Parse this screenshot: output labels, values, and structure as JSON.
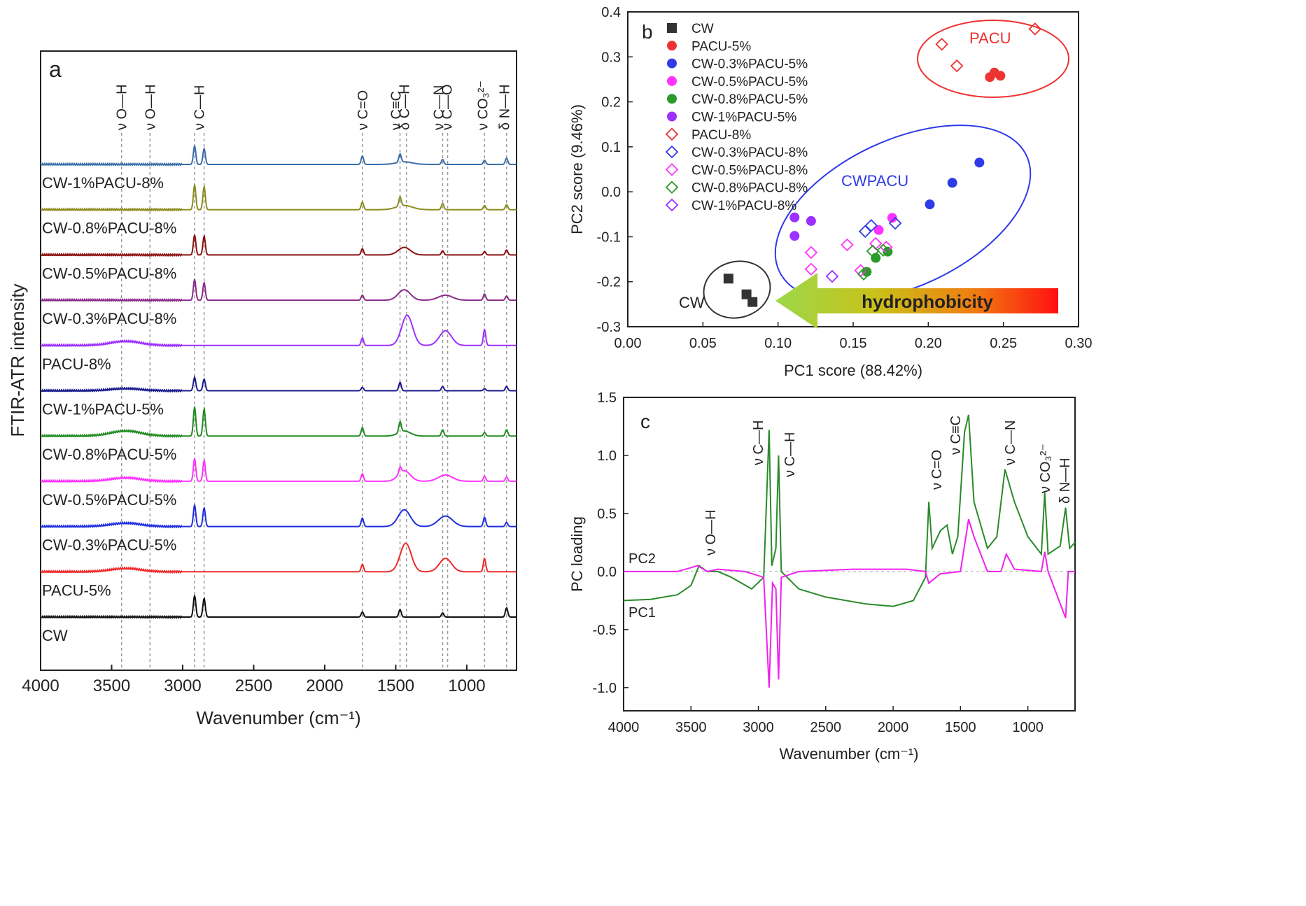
{
  "chart_data": [
    {
      "panel": "a",
      "type": "line",
      "xlabel": "Wavenumber (cm⁻¹)",
      "ylabel": "FTIR-ATR intensity",
      "xlim": [
        4000,
        650
      ],
      "xticks": [
        4000,
        3500,
        3000,
        2500,
        2000,
        1500,
        1000
      ],
      "band_positions": [
        3430,
        3230,
        2916,
        2849,
        1735,
        1470,
        1425,
        1170,
        1135,
        875,
        720
      ],
      "band_labels": [
        {
          "text": "ν O—H",
          "x": 3430
        },
        {
          "text": "ν O—H",
          "x": 3230
        },
        {
          "text": "ν C—H",
          "x": 2885
        },
        {
          "text": "ν C=O",
          "x": 1735
        },
        {
          "text": "ν C≡C",
          "x": 1500
        },
        {
          "text": "δ C—H",
          "x": 1440
        },
        {
          "text": "ν C—N",
          "x": 1200
        },
        {
          "text": "ν C—O",
          "x": 1140
        },
        {
          "text": "ν CO₃²⁻",
          "x": 890
        },
        {
          "text": "δ N—H",
          "x": 735
        }
      ],
      "series": [
        {
          "name": "CW-1%PACU-8%",
          "color": "#3b6fa8",
          "peaks": [
            [
              2916,
              0.45
            ],
            [
              2849,
              0.38
            ],
            [
              1735,
              0.2
            ],
            [
              1470,
              0.2
            ],
            [
              1170,
              0.12
            ],
            [
              875,
              0.1
            ],
            [
              720,
              0.15
            ]
          ],
          "broad": [
            [
              1440,
              0.06,
              80
            ]
          ]
        },
        {
          "name": "CW-0.8%PACU-8%",
          "color": "#8c8c1e",
          "peaks": [
            [
              2916,
              0.6
            ],
            [
              2849,
              0.55
            ],
            [
              1735,
              0.18
            ],
            [
              1470,
              0.22
            ],
            [
              1170,
              0.15
            ],
            [
              875,
              0.1
            ],
            [
              720,
              0.12
            ]
          ],
          "broad": [
            [
              1440,
              0.1,
              80
            ]
          ]
        },
        {
          "name": "CW-0.5%PACU-8%",
          "color": "#8b1010",
          "peaks": [
            [
              2916,
              0.48
            ],
            [
              2849,
              0.45
            ],
            [
              1735,
              0.15
            ],
            [
              1170,
              0.1
            ],
            [
              875,
              0.08
            ],
            [
              720,
              0.12
            ]
          ],
          "broad": [
            [
              1440,
              0.18,
              60
            ]
          ]
        },
        {
          "name": "CW-0.3%PACU-8%",
          "color": "#8a2a8a",
          "peaks": [
            [
              2916,
              0.5
            ],
            [
              2849,
              0.42
            ],
            [
              1735,
              0.12
            ],
            [
              875,
              0.15
            ],
            [
              720,
              0.1
            ]
          ],
          "broad": [
            [
              1440,
              0.25,
              60
            ],
            [
              1150,
              0.12,
              70
            ]
          ]
        },
        {
          "name": "PACU-8%",
          "color": "#9b30ff",
          "peaks": [
            [
              1735,
              0.18
            ],
            [
              875,
              0.38
            ]
          ],
          "broad": [
            [
              3400,
              0.1,
              150
            ],
            [
              1420,
              0.72,
              55
            ],
            [
              1150,
              0.35,
              60
            ]
          ]
        },
        {
          "name": "CW-1%PACU-5%",
          "color": "#1a1a8c",
          "peaks": [
            [
              2916,
              0.32
            ],
            [
              2849,
              0.28
            ],
            [
              1735,
              0.08
            ],
            [
              1470,
              0.2
            ],
            [
              1170,
              0.1
            ],
            [
              875,
              0.05
            ],
            [
              720,
              0.1
            ]
          ],
          "broad": [
            [
              3400,
              0.05,
              150
            ]
          ]
        },
        {
          "name": "CW-0.8%PACU-5%",
          "color": "#228b22",
          "peaks": [
            [
              2916,
              0.7
            ],
            [
              2849,
              0.65
            ],
            [
              1735,
              0.2
            ],
            [
              1470,
              0.25
            ],
            [
              1170,
              0.15
            ],
            [
              875,
              0.08
            ],
            [
              720,
              0.15
            ]
          ],
          "broad": [
            [
              3400,
              0.12,
              150
            ],
            [
              1440,
              0.12,
              60
            ]
          ]
        },
        {
          "name": "CW-0.5%PACU-5%",
          "color": "#ff33ff",
          "peaks": [
            [
              2916,
              0.55
            ],
            [
              2849,
              0.5
            ],
            [
              1735,
              0.18
            ],
            [
              1470,
              0.15
            ],
            [
              875,
              0.12
            ],
            [
              720,
              0.1
            ]
          ],
          "broad": [
            [
              3400,
              0.08,
              150
            ],
            [
              1440,
              0.25,
              60
            ],
            [
              1150,
              0.15,
              70
            ]
          ]
        },
        {
          "name": "CW-0.3%PACU-5%",
          "color": "#1f2fe0",
          "peaks": [
            [
              2916,
              0.52
            ],
            [
              2849,
              0.45
            ],
            [
              1735,
              0.2
            ],
            [
              875,
              0.22
            ],
            [
              720,
              0.1
            ]
          ],
          "broad": [
            [
              3400,
              0.08,
              150
            ],
            [
              1440,
              0.4,
              60
            ],
            [
              1150,
              0.25,
              70
            ]
          ]
        },
        {
          "name": "PACU-5%",
          "color": "#ee2a2a",
          "peaks": [
            [
              1735,
              0.18
            ],
            [
              875,
              0.32
            ]
          ],
          "broad": [
            [
              3400,
              0.08,
              150
            ],
            [
              1430,
              0.68,
              55
            ],
            [
              1150,
              0.32,
              60
            ]
          ]
        },
        {
          "name": "CW",
          "color": "#111111",
          "peaks": [
            [
              2916,
              0.52
            ],
            [
              2849,
              0.45
            ],
            [
              1735,
              0.12
            ],
            [
              1470,
              0.18
            ],
            [
              1170,
              0.1
            ],
            [
              720,
              0.22
            ]
          ],
          "broad": []
        }
      ]
    },
    {
      "panel": "b",
      "type": "scatter",
      "xlabel": "PC1 score (88.42%)",
      "ylabel": "PC2 score (9.46%)",
      "xlim": [
        0.0,
        0.3
      ],
      "ylim": [
        -0.3,
        0.4
      ],
      "xticks": [
        "0.00",
        "0.05",
        "0.10",
        "0.15",
        "0.20",
        "0.25",
        "0.30"
      ],
      "yticks": [
        "-0.3",
        "-0.2",
        "-0.1",
        "0.0",
        "0.1",
        "0.2",
        "0.3",
        "0.4"
      ],
      "annotations": [
        "PACU",
        "CWPACU",
        "CW",
        "hydrophobicity"
      ],
      "series": [
        {
          "name": "CW",
          "color": "#333333",
          "marker": "square",
          "points": [
            [
              0.067,
              -0.193
            ],
            [
              0.079,
              -0.228
            ],
            [
              0.083,
              -0.245
            ]
          ]
        },
        {
          "name": "PACU-5%",
          "color": "#ee3333",
          "marker": "circle",
          "points": [
            [
              0.241,
              0.255
            ],
            [
              0.244,
              0.265
            ],
            [
              0.248,
              0.258
            ]
          ]
        },
        {
          "name": "CW-0.3%PACU-5%",
          "color": "#2e3be6",
          "marker": "circle",
          "points": [
            [
              0.234,
              0.065
            ],
            [
              0.216,
              0.02
            ],
            [
              0.201,
              -0.028
            ]
          ]
        },
        {
          "name": "CW-0.5%PACU-5%",
          "color": "#ff33ff",
          "marker": "circle",
          "points": [
            [
              0.176,
              -0.058
            ],
            [
              0.167,
              -0.085
            ]
          ]
        },
        {
          "name": "CW-0.8%PACU-5%",
          "color": "#2a9a2a",
          "marker": "circle",
          "points": [
            [
              0.173,
              -0.133
            ],
            [
              0.165,
              -0.147
            ],
            [
              0.159,
              -0.178
            ]
          ]
        },
        {
          "name": "CW-1%PACU-5%",
          "color": "#9b30ff",
          "marker": "circle",
          "points": [
            [
              0.111,
              -0.057
            ],
            [
              0.122,
              -0.065
            ],
            [
              0.111,
              -0.098
            ]
          ]
        },
        {
          "name": "PACU-8%",
          "color": "#ee3333",
          "marker": "diamond",
          "points": [
            [
              0.271,
              0.362
            ],
            [
              0.209,
              0.328
            ],
            [
              0.219,
              0.28
            ]
          ]
        },
        {
          "name": "CW-0.3%PACU-8%",
          "color": "#2e3be6",
          "marker": "diamond",
          "points": [
            [
              0.178,
              -0.07
            ],
            [
              0.162,
              -0.075
            ],
            [
              0.158,
              -0.088
            ]
          ]
        },
        {
          "name": "CW-0.5%PACU-8%",
          "color": "#ff33ff",
          "marker": "diamond",
          "points": [
            [
              0.146,
              -0.118
            ],
            [
              0.165,
              -0.115
            ],
            [
              0.172,
              -0.123
            ],
            [
              0.122,
              -0.135
            ],
            [
              0.122,
              -0.172
            ],
            [
              0.155,
              -0.175
            ]
          ]
        },
        {
          "name": "CW-0.8%PACU-8%",
          "color": "#2a9a2a",
          "marker": "diamond",
          "points": [
            [
              0.163,
              -0.132
            ],
            [
              0.17,
              -0.13
            ],
            [
              0.157,
              -0.183
            ]
          ]
        },
        {
          "name": "CW-1%PACU-8%",
          "color": "#9b30ff",
          "marker": "diamond",
          "points": [
            [
              0.136,
              -0.188
            ]
          ]
        }
      ]
    },
    {
      "panel": "c",
      "type": "line",
      "xlabel": "Wavenumber (cm⁻¹)",
      "ylabel": "PC loading",
      "xlim": [
        4000,
        650
      ],
      "ylim": [
        -1.2,
        1.5
      ],
      "xticks": [
        "4000",
        "3500",
        "3000",
        "2500",
        "2000",
        "1500",
        "1000"
      ],
      "yticks": [
        "-1.0",
        "-0.5",
        "0.0",
        "0.5",
        "1.0",
        "1.5"
      ],
      "band_labels": [
        "ν O—H",
        "ν C—H",
        "ν C—H",
        "ν C=O",
        "ν C≡C",
        "ν C—N",
        "ν CO₃²⁻",
        "δ N—H"
      ],
      "series": [
        {
          "name": "PC1",
          "color": "#2a8a2a",
          "points": [
            [
              4000,
              -0.25
            ],
            [
              3800,
              -0.24
            ],
            [
              3600,
              -0.2
            ],
            [
              3500,
              -0.12
            ],
            [
              3440,
              0.05
            ],
            [
              3380,
              0.0
            ],
            [
              3300,
              0.0
            ],
            [
              3200,
              -0.05
            ],
            [
              3050,
              -0.15
            ],
            [
              2960,
              -0.05
            ],
            [
              2920,
              1.22
            ],
            [
              2900,
              0.05
            ],
            [
              2870,
              0.2
            ],
            [
              2850,
              1.0
            ],
            [
              2830,
              0.0
            ],
            [
              2700,
              -0.15
            ],
            [
              2500,
              -0.22
            ],
            [
              2200,
              -0.28
            ],
            [
              2000,
              -0.3
            ],
            [
              1850,
              -0.25
            ],
            [
              1760,
              -0.05
            ],
            [
              1735,
              0.6
            ],
            [
              1710,
              0.2
            ],
            [
              1650,
              0.35
            ],
            [
              1600,
              0.4
            ],
            [
              1560,
              0.15
            ],
            [
              1520,
              0.3
            ],
            [
              1470,
              1.2
            ],
            [
              1440,
              1.35
            ],
            [
              1400,
              0.6
            ],
            [
              1300,
              0.2
            ],
            [
              1230,
              0.3
            ],
            [
              1170,
              0.88
            ],
            [
              1100,
              0.6
            ],
            [
              1000,
              0.3
            ],
            [
              900,
              0.15
            ],
            [
              875,
              0.68
            ],
            [
              850,
              0.15
            ],
            [
              760,
              0.22
            ],
            [
              720,
              0.55
            ],
            [
              690,
              0.2
            ],
            [
              650,
              0.25
            ]
          ]
        },
        {
          "name": "PC2",
          "color": "#ee22ee",
          "points": [
            [
              4000,
              0.0
            ],
            [
              3600,
              0.0
            ],
            [
              3450,
              0.05
            ],
            [
              3380,
              0.0
            ],
            [
              3300,
              0.02
            ],
            [
              3100,
              0.0
            ],
            [
              2960,
              -0.05
            ],
            [
              2920,
              -1.0
            ],
            [
              2895,
              -0.1
            ],
            [
              2870,
              -0.15
            ],
            [
              2850,
              -0.93
            ],
            [
              2830,
              -0.05
            ],
            [
              2700,
              0.0
            ],
            [
              2300,
              0.02
            ],
            [
              1900,
              0.02
            ],
            [
              1760,
              0.0
            ],
            [
              1735,
              -0.1
            ],
            [
              1650,
              -0.02
            ],
            [
              1500,
              0.0
            ],
            [
              1440,
              0.45
            ],
            [
              1400,
              0.3
            ],
            [
              1300,
              0.0
            ],
            [
              1200,
              0.0
            ],
            [
              1160,
              0.15
            ],
            [
              1100,
              0.02
            ],
            [
              900,
              0.0
            ],
            [
              875,
              0.17
            ],
            [
              850,
              0.0
            ],
            [
              720,
              -0.4
            ],
            [
              700,
              0.0
            ],
            [
              650,
              0.0
            ]
          ]
        }
      ]
    }
  ],
  "panel_labels": {
    "a": "a",
    "b": "b",
    "c": "c"
  }
}
